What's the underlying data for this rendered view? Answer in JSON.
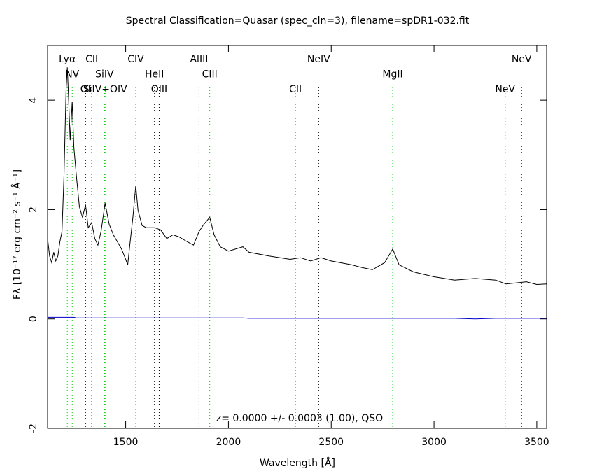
{
  "chart_data": {
    "type": "line",
    "title": "Spectral Classification=Quasar (spec_cln=3), filename=spDR1-032.fit",
    "xlabel": "Wavelength [Å]",
    "ylabel": "Fλ [10⁻¹⁷ erg cm⁻² s⁻¹ Å⁻¹]",
    "annotation": "z= 0.0000 +/- 0.0003 (1.00), QSO",
    "xlim": [
      1120,
      3548
    ],
    "ylim": [
      -2,
      5
    ],
    "xticks": [
      1500,
      2000,
      2500,
      3000,
      3500
    ],
    "yticks": [
      -2,
      0,
      2,
      4
    ],
    "x": [
      1120,
      1130,
      1140,
      1150,
      1160,
      1170,
      1180,
      1190,
      1200,
      1210,
      1216,
      1222,
      1230,
      1240,
      1248,
      1260,
      1275,
      1290,
      1305,
      1318,
      1335,
      1350,
      1365,
      1380,
      1400,
      1420,
      1440,
      1460,
      1480,
      1500,
      1510,
      1520,
      1535,
      1549,
      1560,
      1580,
      1600,
      1640,
      1670,
      1700,
      1730,
      1760,
      1800,
      1830,
      1857,
      1880,
      1909,
      1930,
      1960,
      2000,
      2070,
      2100,
      2200,
      2300,
      2350,
      2400,
      2450,
      2500,
      2600,
      2650,
      2700,
      2760,
      2799,
      2830,
      2900,
      3000,
      3100,
      3200,
      3300,
      3350,
      3450,
      3500,
      3548
    ],
    "series": [
      {
        "name": "flux",
        "color": "#000000",
        "values": [
          1.47,
          1.15,
          1.03,
          1.22,
          1.06,
          1.15,
          1.41,
          1.6,
          2.63,
          4.17,
          4.6,
          4.04,
          3.27,
          3.97,
          3.14,
          2.63,
          2.05,
          1.86,
          2.09,
          1.67,
          1.76,
          1.47,
          1.35,
          1.6,
          2.12,
          1.73,
          1.54,
          1.41,
          1.28,
          1.09,
          0.99,
          1.35,
          1.86,
          2.44,
          1.99,
          1.71,
          1.67,
          1.67,
          1.63,
          1.47,
          1.54,
          1.5,
          1.41,
          1.35,
          1.6,
          1.73,
          1.86,
          1.54,
          1.32,
          1.24,
          1.32,
          1.22,
          1.15,
          1.09,
          1.12,
          1.06,
          1.12,
          1.06,
          0.99,
          0.94,
          0.9,
          1.03,
          1.28,
          0.99,
          0.86,
          0.77,
          0.71,
          0.74,
          0.71,
          0.64,
          0.68,
          0.63,
          0.64
        ]
      },
      {
        "name": "error",
        "color": "#0000cc",
        "values": [
          0.03,
          0.03,
          0.03,
          0.03,
          0.03,
          0.03,
          0.03,
          0.03,
          0.03,
          0.03,
          0.03,
          0.03,
          0.03,
          0.03,
          0.03,
          0.02,
          0.02,
          0.02,
          0.02,
          0.02,
          0.02,
          0.02,
          0.02,
          0.02,
          0.02,
          0.02,
          0.02,
          0.02,
          0.02,
          0.02,
          0.02,
          0.02,
          0.02,
          0.02,
          0.02,
          0.02,
          0.02,
          0.02,
          0.02,
          0.02,
          0.02,
          0.02,
          0.02,
          0.02,
          0.02,
          0.02,
          0.02,
          0.02,
          0.02,
          0.02,
          0.02,
          0.01,
          0.01,
          0.01,
          0.01,
          0.01,
          0.01,
          0.01,
          0.01,
          0.01,
          0.01,
          0.01,
          0.01,
          0.01,
          0.01,
          0.01,
          0.01,
          0.0,
          0.01,
          0.01,
          0.01,
          0.01,
          0.01
        ]
      }
    ],
    "lines": [
      {
        "label": "Lyα",
        "wavelength": 1216,
        "color": "#00cc00"
      },
      {
        "label": "NV",
        "wavelength": 1240,
        "color": "#00cc00"
      },
      {
        "label": "OI",
        "wavelength": 1305,
        "color": "#000000"
      },
      {
        "label": "CII",
        "wavelength": 1335,
        "color": "#000000"
      },
      {
        "label": "SiIV",
        "wavelength": 1397,
        "color": "#00cc00"
      },
      {
        "label": "SiIV+OIV",
        "wavelength": 1400,
        "color": "#00cc00"
      },
      {
        "label": "CIV",
        "wavelength": 1549,
        "color": "#00cc00"
      },
      {
        "label": "HeII",
        "wavelength": 1640,
        "color": "#000000"
      },
      {
        "label": "OIII",
        "wavelength": 1663,
        "color": "#000000"
      },
      {
        "label": "AlIII",
        "wavelength": 1857,
        "color": "#000000"
      },
      {
        "label": "CIII",
        "wavelength": 1909,
        "color": "#00cc00"
      },
      {
        "label": "CII",
        "wavelength": 2326,
        "color": "#00cc00"
      },
      {
        "label": "NeIV",
        "wavelength": 2439,
        "color": "#000000"
      },
      {
        "label": "MgII",
        "wavelength": 2799,
        "color": "#00cc00"
      },
      {
        "label": "NeV",
        "wavelength": 3346,
        "color": "#000000"
      },
      {
        "label": "NeV",
        "wavelength": 3426,
        "color": "#000000"
      }
    ]
  }
}
